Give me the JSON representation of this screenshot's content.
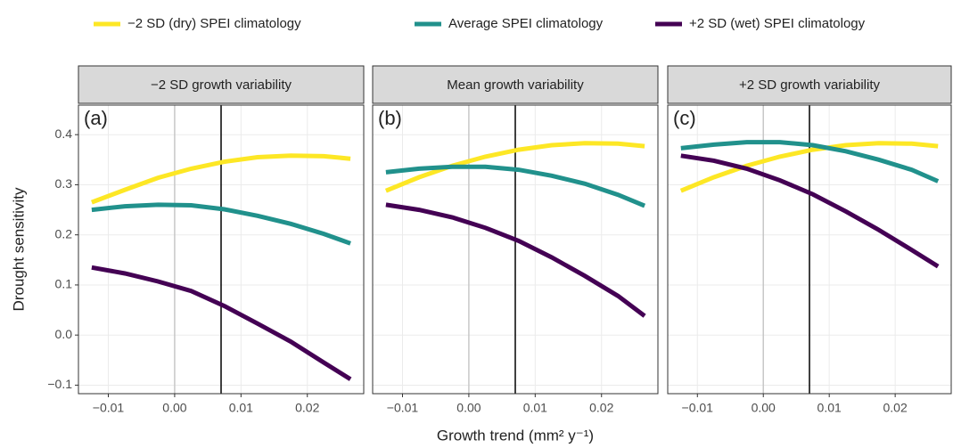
{
  "chart_data": {
    "type": "line",
    "x_label": "Growth trend (mm² y⁻¹)",
    "y_label": "Drought sensitivity",
    "x": [
      -0.0125,
      -0.0075,
      -0.0025,
      0.0025,
      0.0075,
      0.0125,
      0.0175,
      0.0225,
      0.0265
    ],
    "xlim": [
      -0.0145,
      0.0285
    ],
    "ylim": [
      -0.117,
      0.459
    ],
    "xticks": [
      {
        "value": -0.01,
        "label": "−0.01"
      },
      {
        "value": 0,
        "label": "0.00"
      },
      0.01,
      0.02
    ],
    "yticks": [
      {
        "value": -0.1,
        "label": "−0.1"
      },
      {
        "value": 0,
        "label": "0.0"
      },
      0.1,
      0.2,
      0.3,
      0.4
    ],
    "grid": true,
    "reference_lines": [
      {
        "x": 0,
        "color": "#c8c8c8"
      },
      {
        "x": 0.007,
        "color": "#000000"
      }
    ],
    "series": [
      {
        "name": "−2 SD (dry) SPEI climatology",
        "color": "#fde725"
      },
      {
        "name": "Average SPEI climatology",
        "color": "#21918c"
      },
      {
        "name": "+2 SD (wet) SPEI climatology",
        "color": "#440154"
      }
    ],
    "panels": [
      {
        "title": "−2 SD growth variability",
        "label": "(a)",
        "series": [
          {
            "values": [
              0.265,
              0.29,
              0.314,
              0.332,
              0.346,
              0.355,
              0.358,
              0.357,
              0.352
            ]
          },
          {
            "values": [
              0.25,
              0.257,
              0.26,
              0.259,
              0.251,
              0.238,
              0.222,
              0.202,
              0.183
            ]
          },
          {
            "values": [
              0.135,
              0.123,
              0.107,
              0.088,
              0.058,
              0.023,
              -0.013,
              -0.055,
              -0.088
            ]
          }
        ]
      },
      {
        "title": "Mean growth variability",
        "label": "(b)",
        "series": [
          {
            "values": [
              0.288,
              0.315,
              0.338,
              0.356,
              0.37,
              0.379,
              0.383,
              0.382,
              0.377
            ]
          },
          {
            "values": [
              0.325,
              0.332,
              0.336,
              0.336,
              0.33,
              0.318,
              0.302,
              0.28,
              0.258
            ]
          },
          {
            "values": [
              0.26,
              0.25,
              0.235,
              0.214,
              0.188,
              0.155,
              0.118,
              0.078,
              0.038
            ]
          }
        ]
      },
      {
        "title": "+2 SD growth variability",
        "label": "(c)",
        "series": [
          {
            "values": [
              0.288,
              0.315,
              0.338,
              0.356,
              0.37,
              0.379,
              0.383,
              0.382,
              0.377
            ]
          },
          {
            "values": [
              0.373,
              0.38,
              0.385,
              0.385,
              0.379,
              0.367,
              0.35,
              0.33,
              0.307
            ]
          },
          {
            "values": [
              0.358,
              0.348,
              0.332,
              0.309,
              0.281,
              0.247,
              0.21,
              0.17,
              0.137
            ]
          }
        ]
      }
    ]
  }
}
